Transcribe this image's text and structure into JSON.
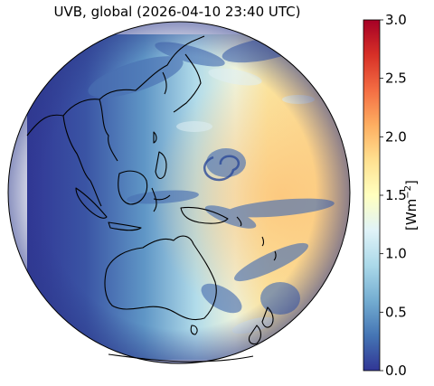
{
  "map": {
    "title": "UVB, global (2026-04-10 23:40 UTC)",
    "projection": "orthographic",
    "quantity": "UVB",
    "coverage": "global",
    "timestamp_utc": "2026-04-10 23:40 UTC",
    "center_region": "Western Pacific",
    "landmasses_outlined": [
      "Asia",
      "Maritime Continent",
      "Australia",
      "New Zealand",
      "Antarctica"
    ],
    "colormap": "RdYlBu_r"
  },
  "colorbar": {
    "unit_base": "[Wm",
    "unit_exp": "−2",
    "unit_close": "]",
    "min": 0.0,
    "max": 3.0,
    "ticks": [
      "0.0",
      "0.5",
      "1.0",
      "1.5",
      "2.0",
      "2.5",
      "3.0"
    ],
    "colors": [
      "#313695",
      "#4575b4",
      "#74add1",
      "#abd9e9",
      "#e0f3f8",
      "#ffffbf",
      "#fee090",
      "#fdae61",
      "#f46d43",
      "#d73027",
      "#a50026"
    ]
  }
}
